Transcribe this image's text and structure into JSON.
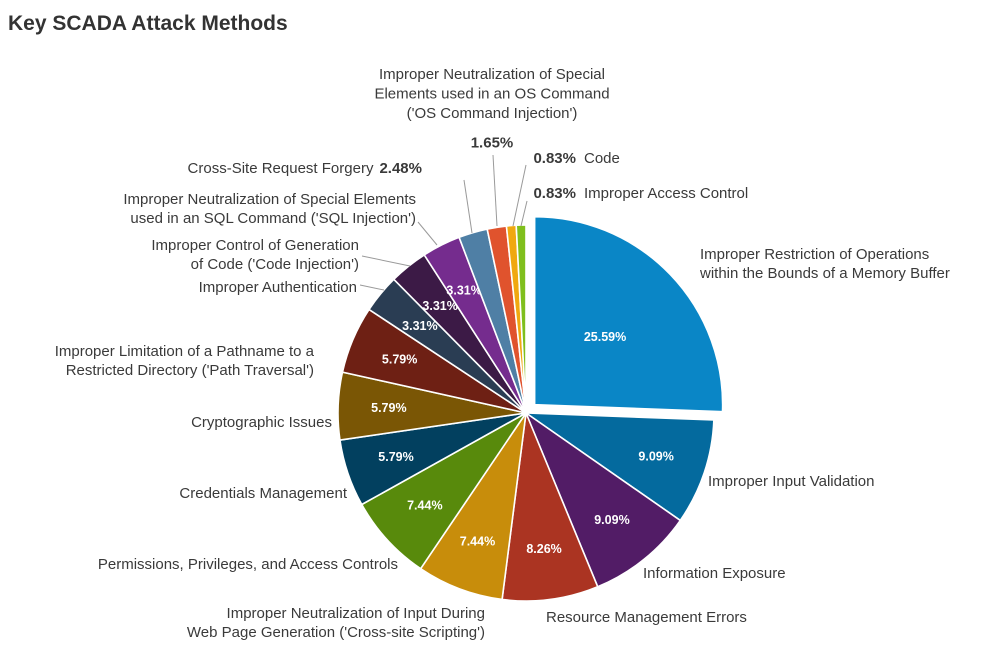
{
  "chart_data": {
    "type": "pie",
    "title": "Key SCADA Attack Methods",
    "slices": [
      {
        "label": "Improper Restriction of Operations within the Bounds of a Memory Buffer",
        "value": 25.59,
        "pct_text": "25.59%",
        "color": "#0a86c6",
        "label_lines": [
          "Improper Restriction of Operations",
          "within the Bounds of a Memory Buffer"
        ],
        "label_pos": "inside",
        "exploded": true
      },
      {
        "label": "Improper Input Validation",
        "value": 9.09,
        "pct_text": "9.09%",
        "color": "#046a9e",
        "label_lines": [
          "Improper Input Validation"
        ],
        "label_pos": "inside"
      },
      {
        "label": "Information Exposure",
        "value": 9.09,
        "pct_text": "9.09%",
        "color": "#521c66",
        "label_lines": [
          "Information Exposure"
        ],
        "label_pos": "inside"
      },
      {
        "label": "Resource Management Errors",
        "value": 8.26,
        "pct_text": "8.26%",
        "color": "#ab3422",
        "label_lines": [
          "Resource Management Errors"
        ],
        "label_pos": "inside"
      },
      {
        "label": "Improper Neutralization of Input During Web Page Generation ('Cross-site Scripting')",
        "value": 7.44,
        "pct_text": "7.44%",
        "color": "#c88d0b",
        "label_lines": [
          "Improper Neutralization of Input During",
          "Web Page Generation ('Cross-site Scripting')"
        ],
        "label_pos": "inside"
      },
      {
        "label": "Permissions, Privileges, and Access Controls",
        "value": 7.44,
        "pct_text": "7.44%",
        "color": "#588a0c",
        "label_lines": [
          "Permissions, Privileges, and Access Controls"
        ],
        "label_pos": "inside"
      },
      {
        "label": "Credentials Management",
        "value": 5.79,
        "pct_text": "5.79%",
        "color": "#02405f",
        "label_lines": [
          "Credentials Management"
        ],
        "label_pos": "inside"
      },
      {
        "label": "Cryptographic Issues",
        "value": 5.79,
        "pct_text": "5.79%",
        "color": "#7a5605",
        "label_lines": [
          "Cryptographic Issues"
        ],
        "label_pos": "inside"
      },
      {
        "label": "Improper Limitation of a Pathname to a Restricted Directory ('Path Traversal')",
        "value": 5.79,
        "pct_text": "5.79%",
        "color": "#6e2014",
        "label_lines": [
          "Improper Limitation of a Pathname to a",
          "Restricted Directory ('Path Traversal')"
        ],
        "label_pos": "inside"
      },
      {
        "label": "Improper Authentication",
        "value": 3.31,
        "pct_text": "3.31%",
        "color": "#2a3d53",
        "label_lines": [
          "Improper Authentication"
        ],
        "label_pos": "inside"
      },
      {
        "label": "Improper Control of Generation of Code ('Code Injection')",
        "value": 3.31,
        "pct_text": "3.31%",
        "color": "#3c1a46",
        "label_lines": [
          "Improper Control of Generation",
          "of Code ('Code Injection')"
        ],
        "label_pos": "inside"
      },
      {
        "label": "Improper Neutralization of Special Elements used in an SQL Command ('SQL Injection')",
        "value": 3.31,
        "pct_text": "3.31%",
        "color": "#752c8e",
        "label_lines": [
          "Improper Neutralization of Special Elements",
          "used in an SQL Command ('SQL Injection')"
        ],
        "label_pos": "inside"
      },
      {
        "label": "Cross-Site Request Forgery",
        "value": 2.48,
        "pct_text": "2.48%",
        "color": "#4f7fa5",
        "label_lines": [
          "Cross-Site Request Forgery"
        ],
        "label_pos": "outside"
      },
      {
        "label": "Improper Neutralization of Special Elements used in an OS Command ('OS Command Injection')",
        "value": 1.65,
        "pct_text": "1.65%",
        "color": "#e0532d",
        "label_lines": [
          "Improper Neutralization of Special",
          "Elements used in an OS Command",
          "('OS Command Injection')"
        ],
        "label_pos": "outside"
      },
      {
        "label": "Code",
        "value": 0.83,
        "pct_text": "0.83%",
        "color": "#f0a810",
        "label_lines": [
          "Code"
        ],
        "label_pos": "outside"
      },
      {
        "label": "Improper Access Control",
        "value": 0.83,
        "pct_text": "0.83%",
        "color": "#7fbf1c",
        "label_lines": [
          "Improper Access Control"
        ],
        "label_pos": "outside"
      }
    ]
  }
}
